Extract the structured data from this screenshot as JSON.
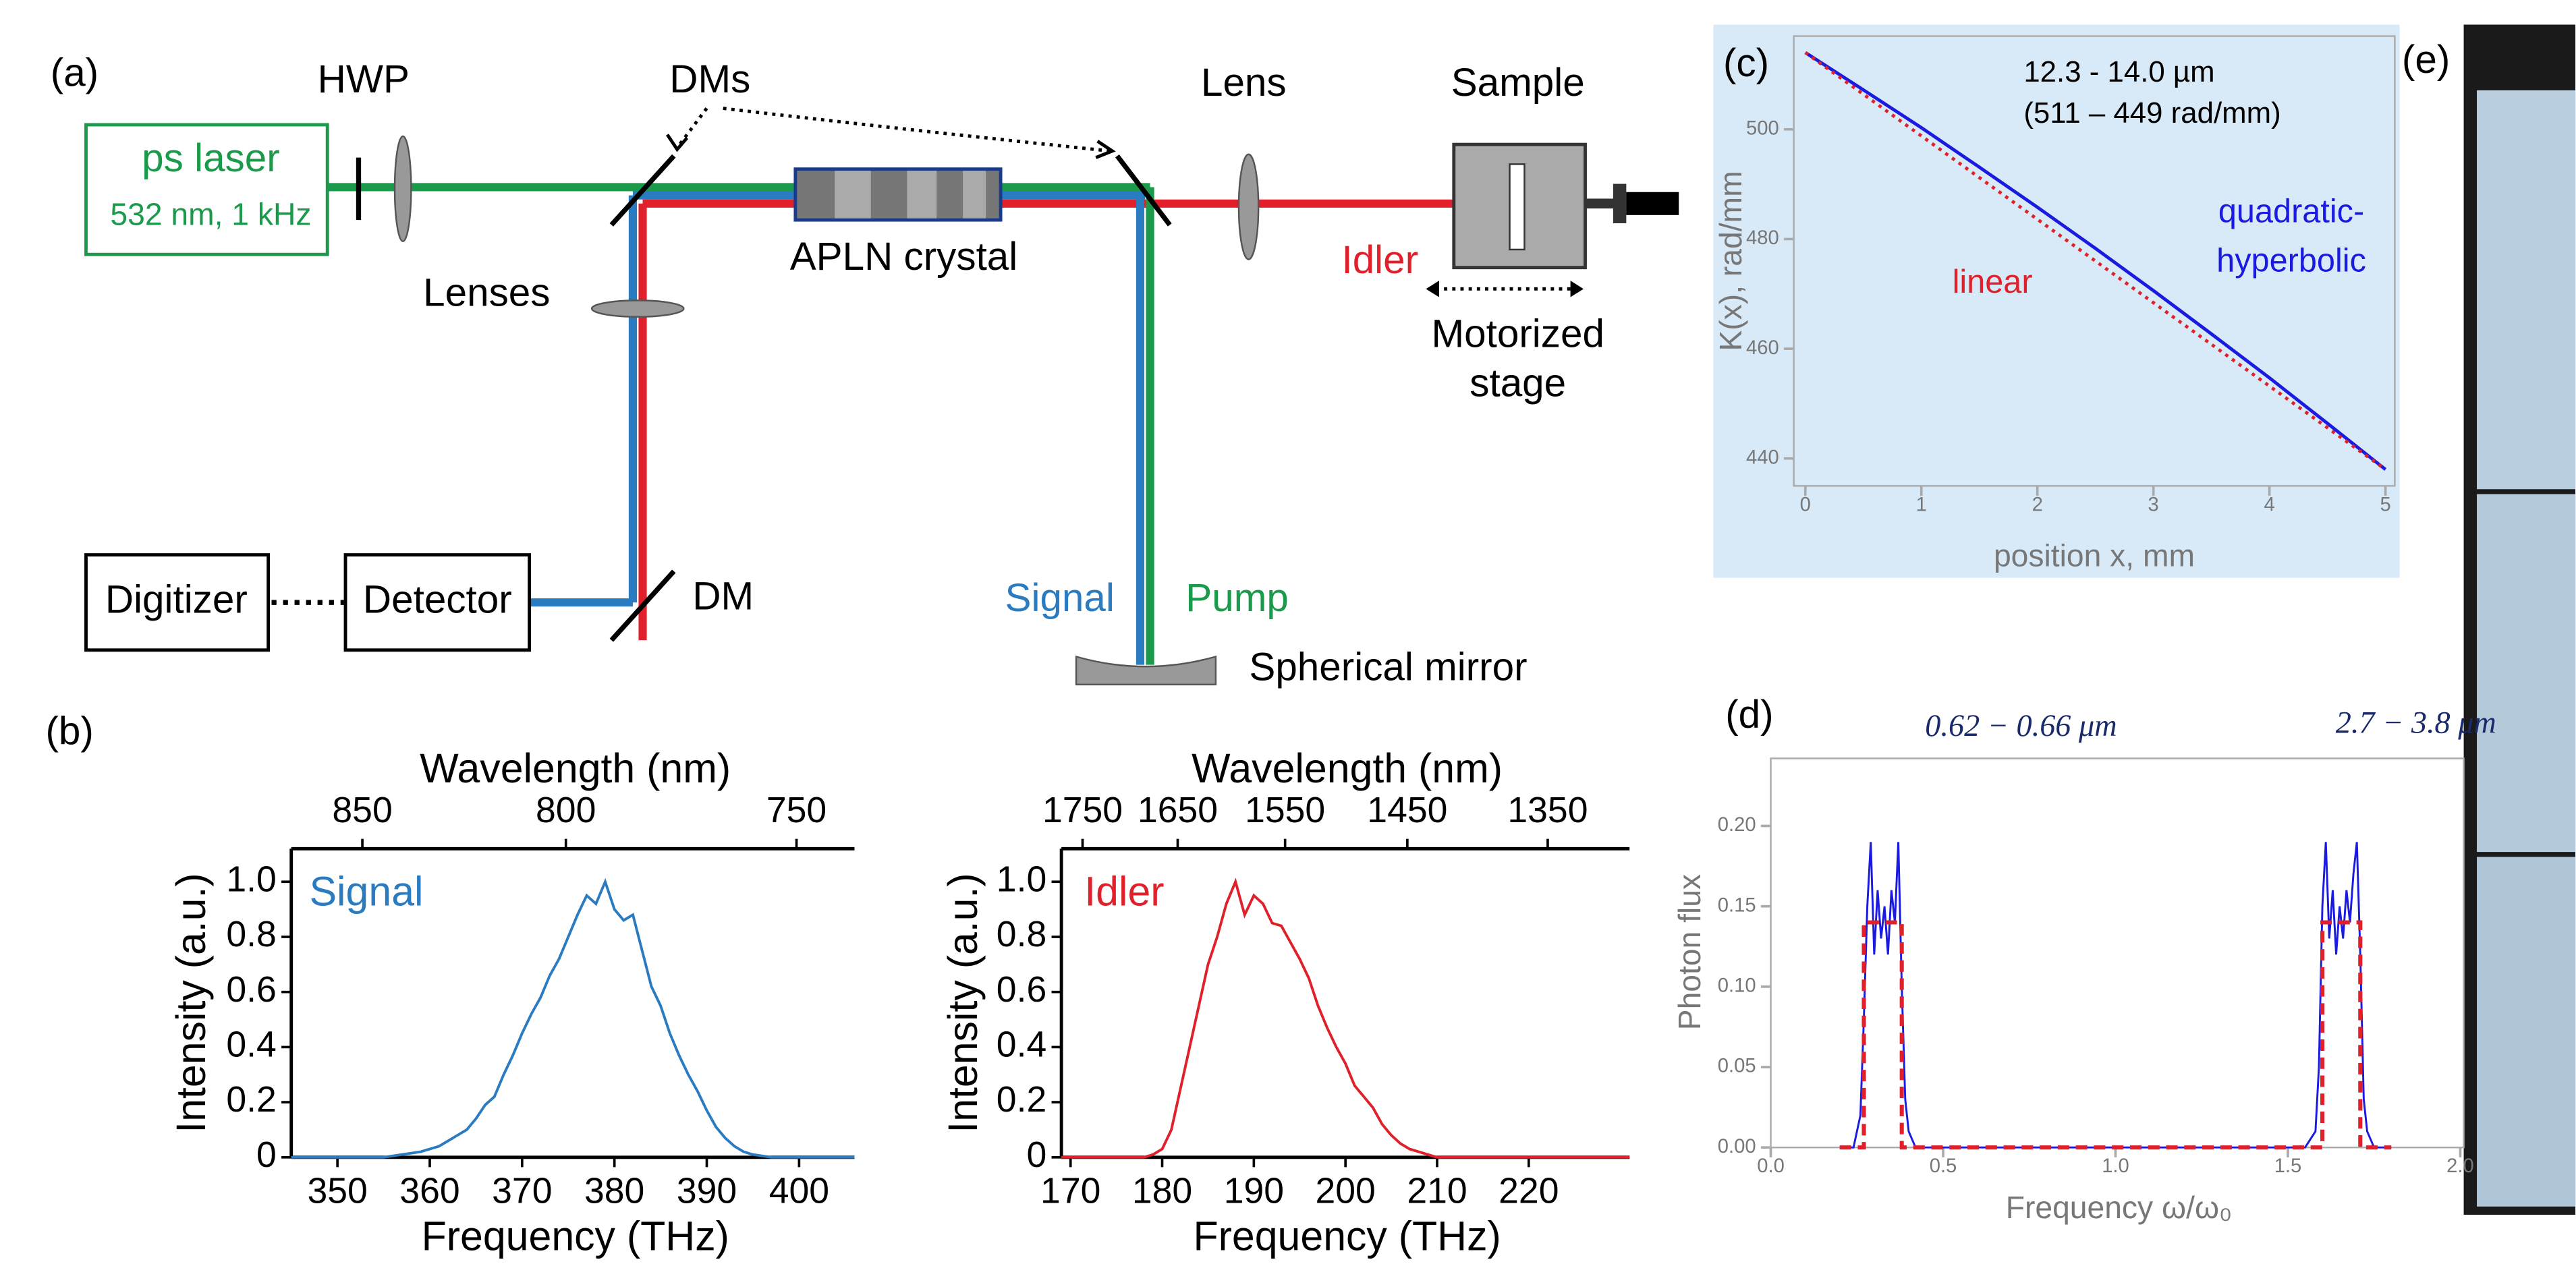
{
  "panels": {
    "a": "(a)",
    "b": "(b)",
    "c": "(c)",
    "d": "(d)",
    "e": "(e)"
  },
  "diagram": {
    "laser_name": "ps laser",
    "laser_spec": "532 nm, 1 kHz",
    "hwp": "HWP",
    "dms": "DMs",
    "lens": "Lens",
    "sample": "Sample",
    "lenses": "Lenses",
    "crystal": "APLN crystal",
    "idler": "Idler",
    "stage": [
      "Motorized",
      "stage"
    ],
    "digitizer": "Digitizer",
    "detector": "Detector",
    "dm": "DM",
    "signal": "Signal",
    "pump": "Pump",
    "mirror": "Spherical mirror"
  },
  "chart_data": [
    {
      "type": "line",
      "xlabel": "Frequency (THz)",
      "ylabel": "Intensity (a.u.)",
      "x2label": "Wavelength (nm)",
      "xlim": [
        345,
        406
      ],
      "ylim": [
        0,
        1.12
      ],
      "xticks": [
        350,
        360,
        370,
        380,
        390,
        400
      ],
      "x2ticks": [
        {
          "value": 352.7,
          "label": "850"
        },
        {
          "value": 374.74,
          "label": "800"
        },
        {
          "value": 399.72,
          "label": "750"
        }
      ],
      "yticks": [
        0,
        0.2,
        0.4,
        0.6,
        0.8,
        {
          "value": 1,
          "label": "1.0"
        }
      ],
      "x": [
        345,
        355,
        357,
        359,
        361,
        362,
        363,
        364,
        365,
        366,
        367,
        368,
        369,
        370,
        371,
        372,
        373,
        374,
        375,
        376,
        377,
        378,
        379,
        380,
        381,
        382,
        383,
        384,
        385,
        386,
        387,
        388,
        389,
        390,
        391,
        392,
        393,
        394,
        395,
        397,
        406
      ],
      "series": [
        {
          "name": "Signal",
          "color": "#2a7bbf",
          "values": [
            0,
            0,
            0.01,
            0.02,
            0.04,
            0.06,
            0.08,
            0.1,
            0.14,
            0.19,
            0.22,
            0.3,
            0.37,
            0.45,
            0.52,
            0.58,
            0.66,
            0.72,
            0.8,
            0.88,
            0.95,
            0.92,
            1.0,
            0.9,
            0.86,
            0.88,
            0.75,
            0.62,
            0.55,
            0.45,
            0.37,
            0.3,
            0.24,
            0.17,
            0.11,
            0.07,
            0.04,
            0.02,
            0.01,
            0,
            0
          ]
        }
      ]
    },
    {
      "type": "line",
      "xlabel": "Frequency (THz)",
      "ylabel": "Intensity (a.u.)",
      "x2label": "Wavelength (nm)",
      "xlim": [
        169,
        231
      ],
      "ylim": [
        0,
        1.12
      ],
      "xticks": [
        170,
        180,
        190,
        200,
        210,
        220
      ],
      "x2ticks": [
        {
          "value": 171.31,
          "label": "1750"
        },
        {
          "value": 181.69,
          "label": "1650"
        },
        {
          "value": 193.41,
          "label": "1550"
        },
        {
          "value": 206.75,
          "label": "1450"
        },
        {
          "value": 222.07,
          "label": "1350"
        }
      ],
      "yticks": [
        0,
        0.2,
        0.4,
        0.6,
        0.8,
        {
          "value": 1,
          "label": "1.0"
        }
      ],
      "x": [
        169,
        178,
        179,
        180,
        181,
        182,
        183,
        184,
        185,
        186,
        187,
        188,
        189,
        190,
        191,
        192,
        193,
        194,
        195,
        196,
        197,
        198,
        199,
        200,
        201,
        202,
        203,
        204,
        205,
        206,
        207,
        208,
        209,
        210,
        231
      ],
      "series": [
        {
          "name": "Idler",
          "color": "#e0202a",
          "values": [
            0,
            0,
            0.01,
            0.03,
            0.1,
            0.25,
            0.4,
            0.55,
            0.7,
            0.8,
            0.92,
            1.0,
            0.88,
            0.95,
            0.92,
            0.85,
            0.84,
            0.78,
            0.72,
            0.65,
            0.55,
            0.47,
            0.4,
            0.34,
            0.26,
            0.22,
            0.18,
            0.12,
            0.08,
            0.05,
            0.03,
            0.02,
            0.01,
            0,
            0
          ]
        }
      ]
    },
    {
      "type": "line",
      "xlabel": "position x, mm",
      "ylabel": "K(x), rad/mm",
      "annotations": [
        "12.3 - 14.0 µm",
        "(511 – 449 rad/mm)"
      ],
      "xlim": [
        -0.1,
        5.08
      ],
      "ylim": [
        435,
        517
      ],
      "xticks": [
        0,
        1,
        2,
        3,
        4,
        5
      ],
      "yticks": [
        440,
        460,
        480,
        500
      ],
      "x": [
        0,
        0.5,
        1,
        1.5,
        2,
        2.5,
        3,
        3.5,
        4,
        4.5,
        5
      ],
      "series": [
        {
          "name": "quadratic-hyperbolic",
          "color": "#1a1ae0",
          "linestyle": "solid",
          "values": [
            514,
            507.2,
            500.3,
            493.1,
            485.8,
            478.3,
            470.6,
            462.7,
            454.7,
            446.4,
            438
          ]
        },
        {
          "name": "linear",
          "color": "#e0202a",
          "linestyle": "dotted",
          "values": [
            514,
            506.4,
            498.8,
            491.2,
            483.6,
            476,
            468.4,
            460.8,
            453.2,
            445.6,
            438
          ]
        }
      ]
    },
    {
      "type": "line",
      "xlabel": "Frequency ω/ω₀",
      "ylabel": "Photon flux",
      "annotations": [
        "0.62 − 0.66 μm",
        "2.7 − 3.8 μm"
      ],
      "xlim": [
        0,
        2.01
      ],
      "ylim": [
        0,
        0.242
      ],
      "xticks": [
        {
          "value": 0,
          "label": "0.0"
        },
        0.5,
        {
          "value": 1,
          "label": "1.0"
        },
        1.5,
        {
          "value": 2,
          "label": "2.0"
        }
      ],
      "yticks": [
        {
          "value": 0,
          "label": "0.00"
        },
        0.05,
        {
          "value": 0.1,
          "label": "0.10"
        },
        0.15,
        {
          "value": 0.2,
          "label": "0.20"
        }
      ],
      "series": [
        {
          "color": "#1a1ae0",
          "linestyle": "solid",
          "x": [
            0.2,
            0.24,
            0.26,
            0.27,
            0.28,
            0.29,
            0.3,
            0.31,
            0.32,
            0.33,
            0.34,
            0.35,
            0.36,
            0.37,
            0.38,
            0.39,
            0.4,
            0.42,
            1.55,
            1.58,
            1.59,
            1.6,
            1.61,
            1.62,
            1.63,
            1.64,
            1.65,
            1.66,
            1.67,
            1.68,
            1.69,
            1.7,
            1.71,
            1.72,
            1.73,
            1.75,
            1.8
          ],
          "values": [
            0,
            0,
            0.02,
            0.08,
            0.15,
            0.19,
            0.12,
            0.16,
            0.13,
            0.15,
            0.12,
            0.16,
            0.14,
            0.19,
            0.1,
            0.03,
            0.01,
            0,
            0,
            0.01,
            0.05,
            0.15,
            0.19,
            0.13,
            0.16,
            0.12,
            0.15,
            0.13,
            0.16,
            0.14,
            0.17,
            0.19,
            0.12,
            0.03,
            0.01,
            0,
            0
          ]
        },
        {
          "color": "#e0202a",
          "linestyle": "dashed",
          "x": [
            0.2,
            0.27,
            0.27,
            0.38,
            0.38,
            1.6,
            1.6,
            1.71,
            1.71,
            1.8
          ],
          "values": [
            0,
            0,
            0.14,
            0.14,
            0,
            0,
            0.14,
            0.14,
            0,
            0
          ]
        }
      ]
    }
  ]
}
